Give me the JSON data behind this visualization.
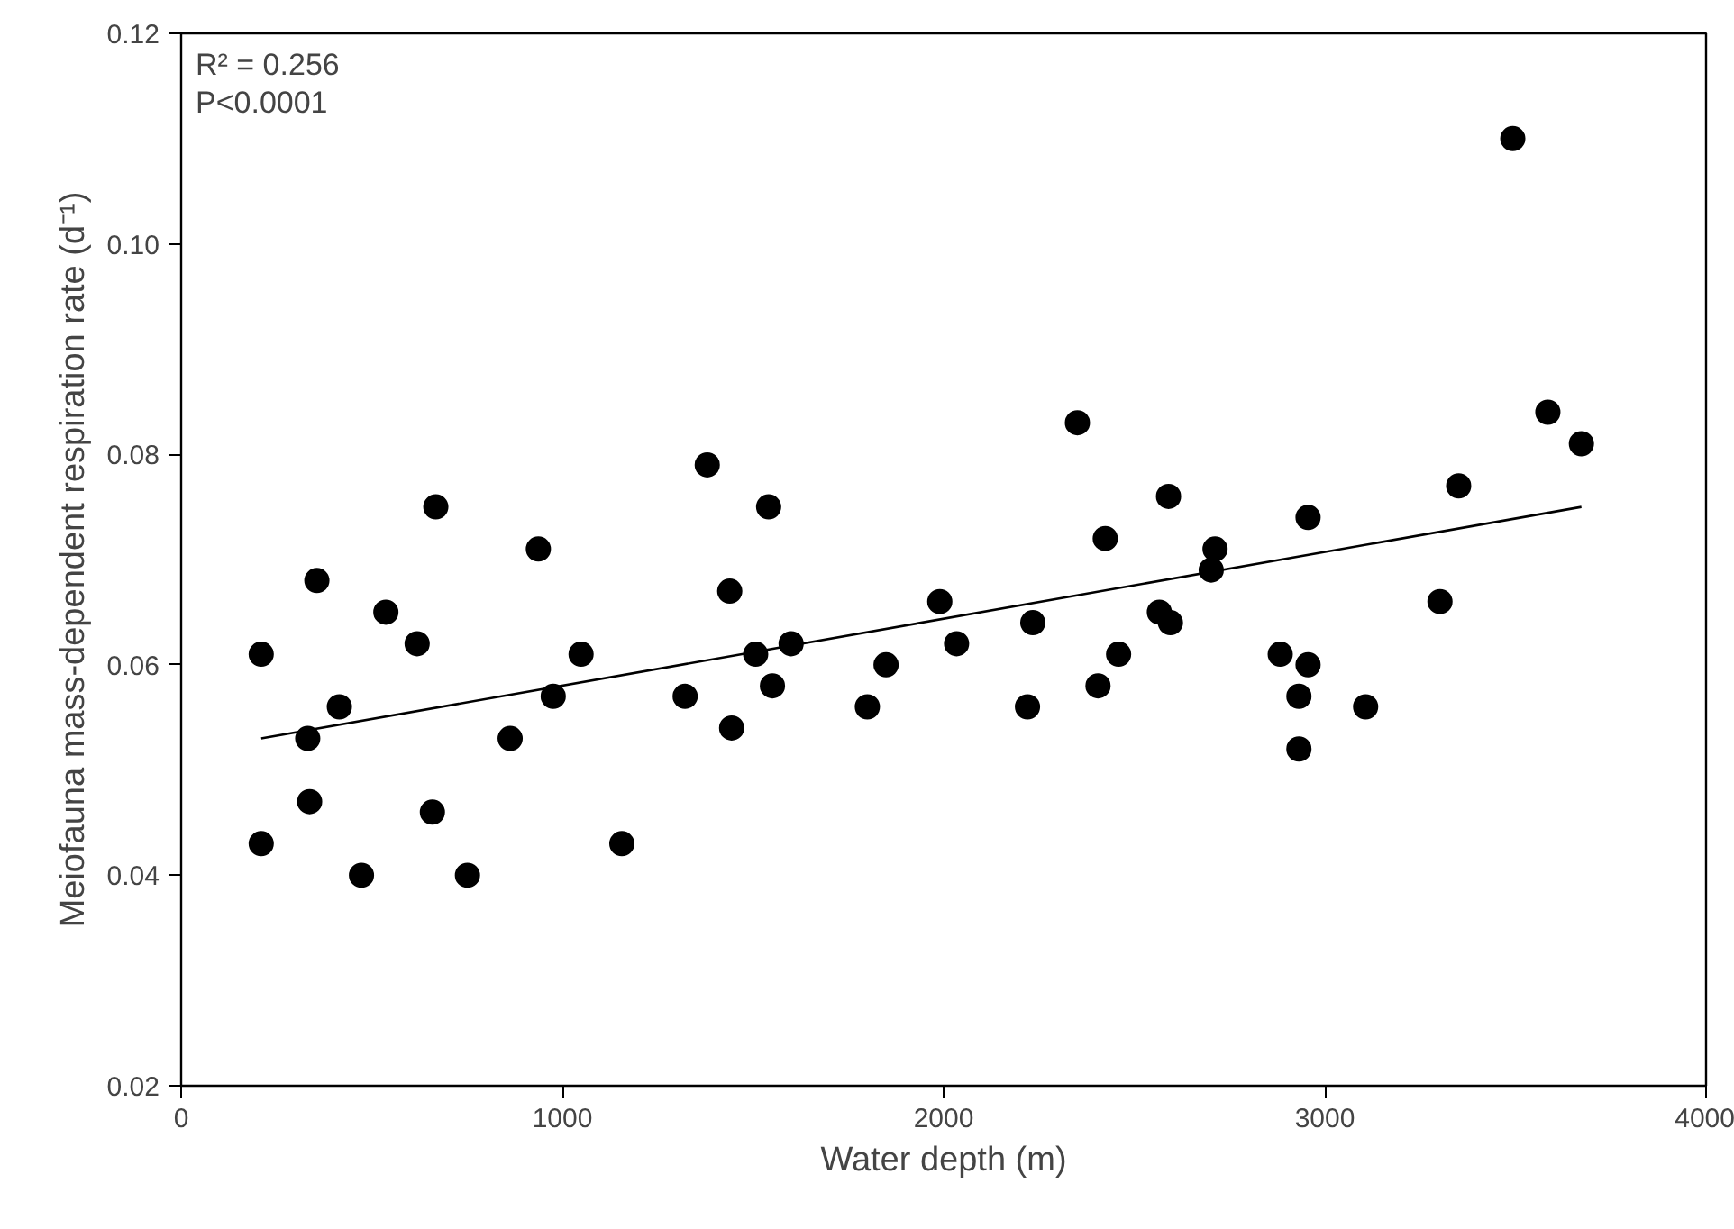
{
  "chart_data": {
    "type": "scatter",
    "xlabel": "Water depth (m)",
    "ylabel": "Meiofauna mass-dependent respiration rate (d⁻¹)",
    "annotations": [
      "R² = 0.256",
      "P<0.0001"
    ],
    "xlim": [
      0,
      4000
    ],
    "xticks": [
      0,
      1000,
      2000,
      3000,
      4000
    ],
    "ylim": [
      0.02,
      0.12
    ],
    "yticks": [
      {
        "value": 0.02,
        "label": "0.02"
      },
      {
        "value": 0.04,
        "label": "0.04"
      },
      {
        "value": 0.06,
        "label": "0.06"
      },
      {
        "value": 0.08,
        "label": "0.08"
      },
      {
        "value": 0.1,
        "label": "0.10"
      },
      {
        "value": 0.12,
        "label": "0.12"
      }
    ],
    "marker": "circle",
    "series": [
      {
        "color": "#000000",
        "x": [
          210,
          332,
          356,
          415,
          537,
          619,
          668,
          937,
          863,
          976,
          1049,
          1322,
          1380,
          1439,
          1444,
          1507,
          1541,
          1551,
          1600,
          1800,
          1849,
          1990,
          2034,
          2220,
          2234,
          2351,
          2405,
          2424,
          2459,
          2566,
          2590,
          2595,
          2702,
          2712,
          2883,
          2932,
          2932,
          2956,
          2956,
          3107,
          3302,
          3351,
          3493,
          3585,
          3673,
          210,
          337,
          473,
          659,
          751,
          1156
        ],
        "values": [
          0.061,
          0.053,
          0.068,
          0.056,
          0.065,
          0.062,
          0.075,
          0.071,
          0.053,
          0.057,
          0.061,
          0.057,
          0.079,
          0.067,
          0.054,
          0.061,
          0.075,
          0.058,
          0.062,
          0.056,
          0.06,
          0.066,
          0.062,
          0.056,
          0.064,
          0.083,
          0.058,
          0.072,
          0.061,
          0.065,
          0.076,
          0.064,
          0.069,
          0.071,
          0.061,
          0.057,
          0.052,
          0.06,
          0.074,
          0.056,
          0.066,
          0.077,
          0.11,
          0.084,
          0.081,
          0.043,
          0.047,
          0.04,
          0.046,
          0.04,
          0.043
        ]
      },
      {
        "type": "line",
        "color": "#000000",
        "marker": "none",
        "line_style": "solid",
        "x": [
          210,
          3673
        ],
        "values": [
          0.053,
          0.075
        ]
      }
    ]
  }
}
